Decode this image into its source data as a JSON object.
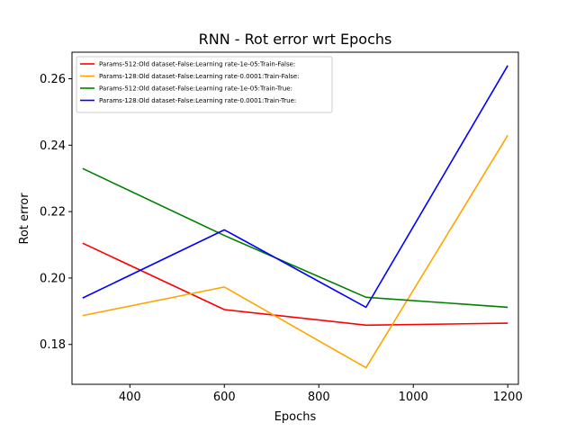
{
  "chart_data": {
    "type": "line",
    "title": "RNN - Rot error wrt Epochs",
    "xlabel": "Epochs",
    "ylabel": "Rot error",
    "xlim": [
      277.5,
      1222.5
    ],
    "ylim": [
      0.168,
      0.268
    ],
    "xticks": [
      400,
      600,
      800,
      1000,
      1200
    ],
    "xtick_labels": [
      "400",
      "600",
      "800",
      "1000",
      "1200"
    ],
    "yticks": [
      0.18,
      0.2,
      0.22,
      0.24,
      0.26
    ],
    "ytick_labels": [
      "0.18",
      "0.20",
      "0.22",
      "0.24",
      "0.26"
    ],
    "grid": false,
    "legend_position": "top-left",
    "x": [
      300,
      600,
      900,
      1200
    ],
    "series": [
      {
        "name": "Params-512:Old dataset-False:Learning rate-1e-05:Train-False:",
        "color": "#ff0000",
        "values": [
          0.2105,
          0.1905,
          0.1858,
          0.1864
        ]
      },
      {
        "name": "Params-128:Old dataset-False:Learning rate-0.0001:Train-False:",
        "color": "#ffa500",
        "values": [
          0.1887,
          0.1973,
          0.173,
          0.243
        ]
      },
      {
        "name": "Params-512:Old dataset-False:Learning rate-1e-05:Train-True:",
        "color": "#008000",
        "values": [
          0.233,
          0.2128,
          0.1942,
          0.1912
        ]
      },
      {
        "name": "Params-128:Old dataset-False:Learning rate-0.0001:Train-True:",
        "color": "#0000ff",
        "values": [
          0.194,
          0.2145,
          0.1912,
          0.264
        ]
      }
    ]
  }
}
